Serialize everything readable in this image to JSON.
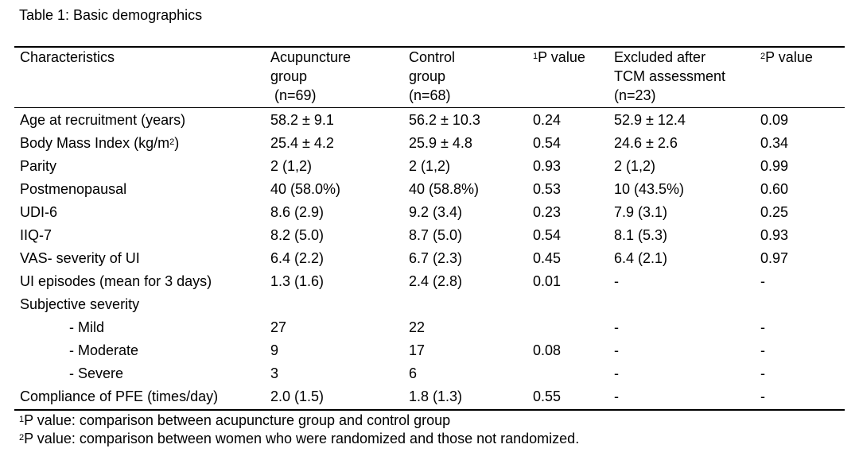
{
  "caption": "Table 1: Basic demographics",
  "headers": {
    "characteristics": "Characteristics",
    "acupuncture": [
      "Acupuncture",
      "group",
      " (n=69)"
    ],
    "control": [
      "Control",
      "group",
      "(n=68)"
    ],
    "p1_sup": "1",
    "p1_text": "P value",
    "excluded": [
      "Excluded after",
      "TCM assessment",
      "(n=23)"
    ],
    "p2_sup": "2",
    "p2_text": "P value"
  },
  "rows": [
    {
      "label": "Age at recruitment (years)",
      "acu": "58.2 ± 9.1",
      "ctrl": "56.2 ± 10.3",
      "p1": "0.24",
      "excl": "52.9 ± 12.4",
      "p2": "0.09"
    },
    {
      "label_pre": "Body Mass Index (kg/m",
      "label_sup": "2",
      "label_post": ")",
      "acu": "25.4 ± 4.2",
      "ctrl": "25.9 ± 4.8",
      "p1": "0.54",
      "excl": "24.6 ± 2.6",
      "p2": "0.34"
    },
    {
      "label": "Parity",
      "acu": "2 (1,2)",
      "ctrl": "2 (1,2)",
      "p1": "0.93",
      "excl": "2 (1,2)",
      "p2": "0.99"
    },
    {
      "label": "Postmenopausal",
      "acu": "40 (58.0%)",
      "ctrl": "40 (58.8%)",
      "p1": "0.53",
      "excl": "10 (43.5%)",
      "p2": "0.60"
    },
    {
      "label": "UDI-6",
      "acu": "8.6 (2.9)",
      "ctrl": "9.2 (3.4)",
      "p1": "0.23",
      "excl": "7.9 (3.1)",
      "p2": "0.25"
    },
    {
      "label": "IIQ-7",
      "acu": "8.2 (5.0)",
      "ctrl": "8.7 (5.0)",
      "p1": "0.54",
      "excl": "8.1 (5.3)",
      "p2": "0.93"
    },
    {
      "label": "VAS- severity of UI",
      "acu": "6.4 (2.2)",
      "ctrl": "6.7 (2.3)",
      "p1": "0.45",
      "excl": "6.4 (2.1)",
      "p2": "0.97"
    },
    {
      "label": "UI episodes (mean for 3 days)",
      "acu": "1.3 (1.6)",
      "ctrl": "2.4 (2.8)",
      "p1": "0.01",
      "excl": "-",
      "p2": "-"
    },
    {
      "label": "Subjective severity",
      "acu": "",
      "ctrl": "",
      "p1": "",
      "excl": "",
      "p2": ""
    },
    {
      "label": "- Mild",
      "acu": "27",
      "ctrl": "22",
      "p1": "",
      "excl": "-",
      "p2": "-"
    },
    {
      "label": "- Moderate",
      "acu": "9",
      "ctrl": "17",
      "p1": "0.08",
      "excl": "-",
      "p2": "-"
    },
    {
      "label": "- Severe",
      "acu": "3",
      "ctrl": "6",
      "p1": "",
      "excl": "-",
      "p2": "-"
    },
    {
      "label": "Compliance of PFE (times/day)",
      "acu": "2.0 (1.5)",
      "ctrl": "1.8 (1.3)",
      "p1": "0.55",
      "excl": "-",
      "p2": "-"
    }
  ],
  "footnotes": [
    {
      "sup": "1",
      "text": "P value: comparison between acupuncture group and control group"
    },
    {
      "sup": "2",
      "text": "P value: comparison between women who were randomized and those not randomized."
    }
  ]
}
